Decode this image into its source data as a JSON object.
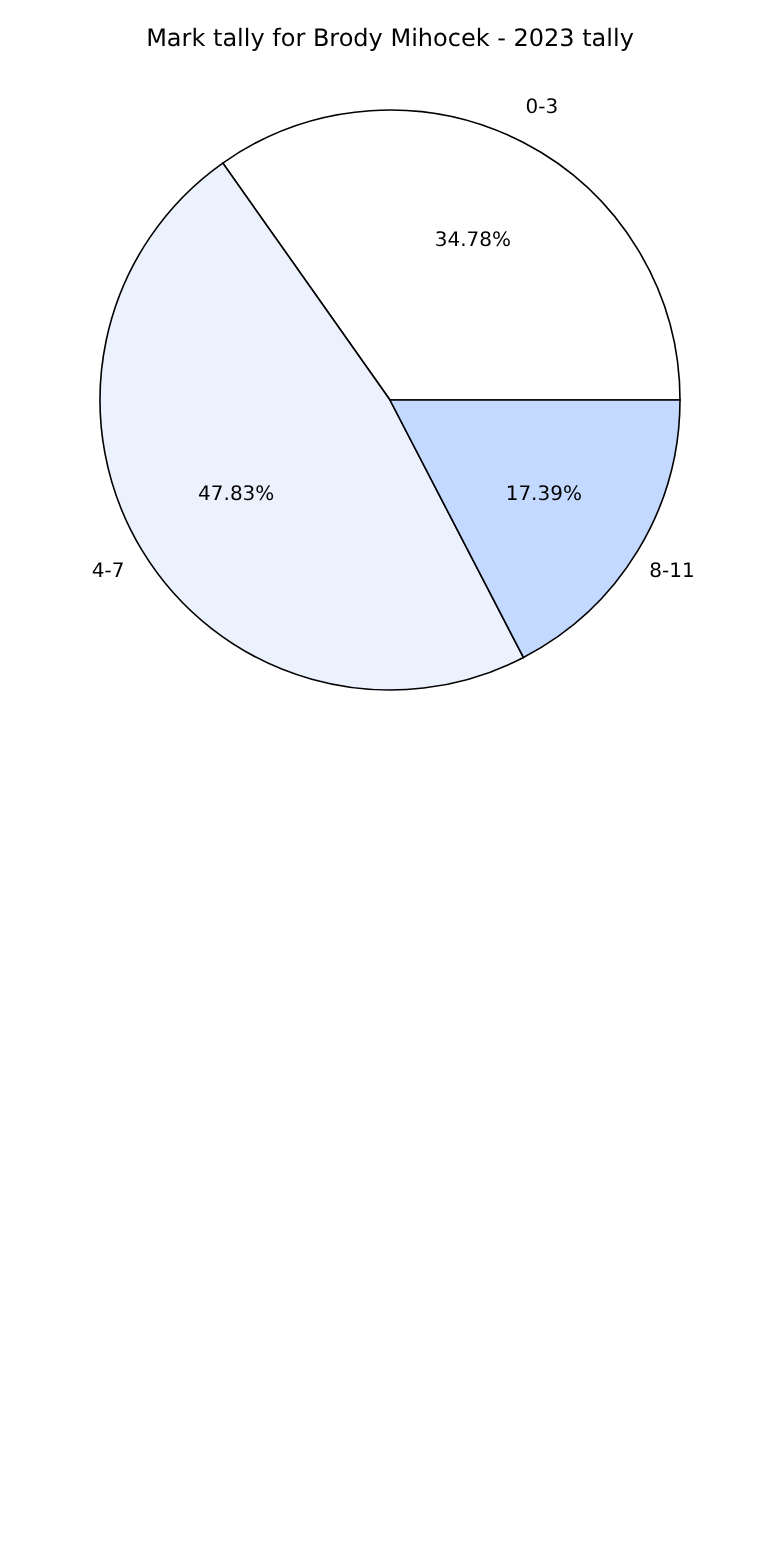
{
  "chart_data": {
    "type": "pie",
    "title": "Mark tally for Brody Mihocek - 2023 tally",
    "categories": [
      "0-3",
      "4-7",
      "8-11"
    ],
    "values": [
      34.78,
      47.83,
      17.39
    ],
    "value_labels": [
      "34.78%",
      "47.83%",
      "17.39%"
    ],
    "colors": [
      "#ffffff",
      "#ebf1fd",
      "#c4d9ff"
    ],
    "legend": false
  }
}
